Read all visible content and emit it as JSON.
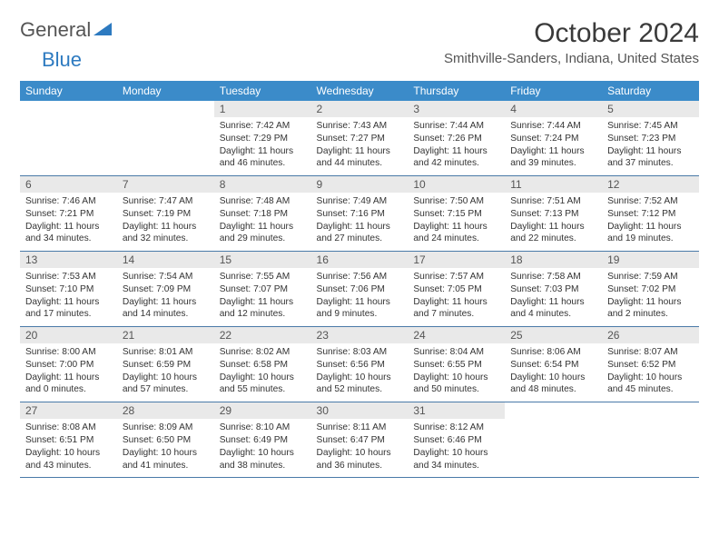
{
  "brand": {
    "text_gray": "General",
    "text_blue": "Blue"
  },
  "title": {
    "month": "October 2024",
    "location": "Smithville-Sanders, Indiana, United States"
  },
  "colors": {
    "header_bg": "#3b8bc9",
    "header_text": "#ffffff",
    "daynum_bg": "#e9e9e9",
    "rule": "#4a7aa8",
    "logo_blue": "#2d7ac0",
    "text": "#333333"
  },
  "weekdays": [
    "Sunday",
    "Monday",
    "Tuesday",
    "Wednesday",
    "Thursday",
    "Friday",
    "Saturday"
  ],
  "weeks": [
    [
      null,
      null,
      {
        "n": "1",
        "sr": "7:42 AM",
        "ss": "7:29 PM",
        "dl": "11 hours and 46 minutes."
      },
      {
        "n": "2",
        "sr": "7:43 AM",
        "ss": "7:27 PM",
        "dl": "11 hours and 44 minutes."
      },
      {
        "n": "3",
        "sr": "7:44 AM",
        "ss": "7:26 PM",
        "dl": "11 hours and 42 minutes."
      },
      {
        "n": "4",
        "sr": "7:44 AM",
        "ss": "7:24 PM",
        "dl": "11 hours and 39 minutes."
      },
      {
        "n": "5",
        "sr": "7:45 AM",
        "ss": "7:23 PM",
        "dl": "11 hours and 37 minutes."
      }
    ],
    [
      {
        "n": "6",
        "sr": "7:46 AM",
        "ss": "7:21 PM",
        "dl": "11 hours and 34 minutes."
      },
      {
        "n": "7",
        "sr": "7:47 AM",
        "ss": "7:19 PM",
        "dl": "11 hours and 32 minutes."
      },
      {
        "n": "8",
        "sr": "7:48 AM",
        "ss": "7:18 PM",
        "dl": "11 hours and 29 minutes."
      },
      {
        "n": "9",
        "sr": "7:49 AM",
        "ss": "7:16 PM",
        "dl": "11 hours and 27 minutes."
      },
      {
        "n": "10",
        "sr": "7:50 AM",
        "ss": "7:15 PM",
        "dl": "11 hours and 24 minutes."
      },
      {
        "n": "11",
        "sr": "7:51 AM",
        "ss": "7:13 PM",
        "dl": "11 hours and 22 minutes."
      },
      {
        "n": "12",
        "sr": "7:52 AM",
        "ss": "7:12 PM",
        "dl": "11 hours and 19 minutes."
      }
    ],
    [
      {
        "n": "13",
        "sr": "7:53 AM",
        "ss": "7:10 PM",
        "dl": "11 hours and 17 minutes."
      },
      {
        "n": "14",
        "sr": "7:54 AM",
        "ss": "7:09 PM",
        "dl": "11 hours and 14 minutes."
      },
      {
        "n": "15",
        "sr": "7:55 AM",
        "ss": "7:07 PM",
        "dl": "11 hours and 12 minutes."
      },
      {
        "n": "16",
        "sr": "7:56 AM",
        "ss": "7:06 PM",
        "dl": "11 hours and 9 minutes."
      },
      {
        "n": "17",
        "sr": "7:57 AM",
        "ss": "7:05 PM",
        "dl": "11 hours and 7 minutes."
      },
      {
        "n": "18",
        "sr": "7:58 AM",
        "ss": "7:03 PM",
        "dl": "11 hours and 4 minutes."
      },
      {
        "n": "19",
        "sr": "7:59 AM",
        "ss": "7:02 PM",
        "dl": "11 hours and 2 minutes."
      }
    ],
    [
      {
        "n": "20",
        "sr": "8:00 AM",
        "ss": "7:00 PM",
        "dl": "11 hours and 0 minutes."
      },
      {
        "n": "21",
        "sr": "8:01 AM",
        "ss": "6:59 PM",
        "dl": "10 hours and 57 minutes."
      },
      {
        "n": "22",
        "sr": "8:02 AM",
        "ss": "6:58 PM",
        "dl": "10 hours and 55 minutes."
      },
      {
        "n": "23",
        "sr": "8:03 AM",
        "ss": "6:56 PM",
        "dl": "10 hours and 52 minutes."
      },
      {
        "n": "24",
        "sr": "8:04 AM",
        "ss": "6:55 PM",
        "dl": "10 hours and 50 minutes."
      },
      {
        "n": "25",
        "sr": "8:06 AM",
        "ss": "6:54 PM",
        "dl": "10 hours and 48 minutes."
      },
      {
        "n": "26",
        "sr": "8:07 AM",
        "ss": "6:52 PM",
        "dl": "10 hours and 45 minutes."
      }
    ],
    [
      {
        "n": "27",
        "sr": "8:08 AM",
        "ss": "6:51 PM",
        "dl": "10 hours and 43 minutes."
      },
      {
        "n": "28",
        "sr": "8:09 AM",
        "ss": "6:50 PM",
        "dl": "10 hours and 41 minutes."
      },
      {
        "n": "29",
        "sr": "8:10 AM",
        "ss": "6:49 PM",
        "dl": "10 hours and 38 minutes."
      },
      {
        "n": "30",
        "sr": "8:11 AM",
        "ss": "6:47 PM",
        "dl": "10 hours and 36 minutes."
      },
      {
        "n": "31",
        "sr": "8:12 AM",
        "ss": "6:46 PM",
        "dl": "10 hours and 34 minutes."
      },
      null,
      null
    ]
  ],
  "labels": {
    "sunrise": "Sunrise:",
    "sunset": "Sunset:",
    "daylight": "Daylight:"
  }
}
